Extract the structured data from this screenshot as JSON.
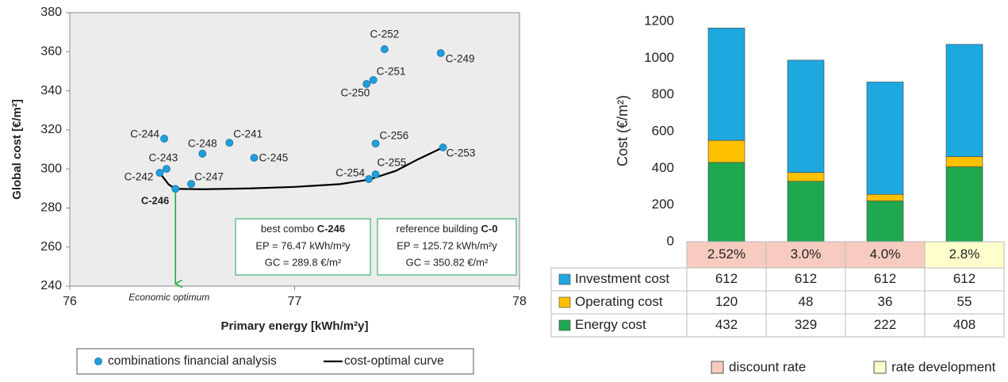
{
  "chart_data": [
    {
      "type": "scatter",
      "xlabel": "Primary energy [kWh/m²y]",
      "ylabel": "Global cost [€/m²]",
      "xlim": [
        76,
        78
      ],
      "xticks": [
        76,
        77,
        78
      ],
      "ylim": [
        240,
        380
      ],
      "yticks": [
        240,
        260,
        280,
        300,
        320,
        340,
        360,
        380
      ],
      "series": [
        {
          "name": "combinations financial analysis",
          "color": "#1ea0dc",
          "labels": [
            "C-252",
            "C-249",
            "C-251",
            "C-250",
            "C-244",
            "C-241",
            "C-248",
            "C-245",
            "C-256",
            "C-253",
            "C-243",
            "C-242",
            "C-247",
            "C-246",
            "C-255",
            "C-254"
          ],
          "x": [
            77.4,
            77.65,
            77.35,
            77.32,
            76.42,
            76.71,
            76.59,
            76.82,
            77.36,
            77.66,
            76.43,
            76.4,
            76.54,
            76.47,
            77.36,
            77.33
          ],
          "values": [
            361.3,
            359.3,
            345.5,
            343.5,
            315.5,
            313.4,
            307.8,
            305.7,
            313.0,
            311.0,
            300.0,
            298.0,
            292.3,
            289.8,
            297.2,
            294.8
          ]
        },
        {
          "name": "cost-optimal curve",
          "color": "#000000",
          "x": [
            76.4,
            76.44,
            76.47,
            76.6,
            76.8,
            77.0,
            77.2,
            77.33,
            77.45,
            77.55,
            77.66
          ],
          "values": [
            298,
            292,
            289.8,
            289.6,
            290,
            290.8,
            292.2,
            294.5,
            299,
            305,
            311
          ]
        }
      ],
      "best_box": {
        "title": "best combo",
        "title_bold": "C-246",
        "lines": [
          "EP = 76.47 kWh/m²y",
          "GC = 289.8 €/m²"
        ]
      },
      "ref_box": {
        "title": "reference building",
        "title_bold": "C-0",
        "lines": [
          "EP = 125.72 kWh/m²y",
          "GC = 350.82 €/m²"
        ]
      },
      "optimum_label": "Economic optimum"
    },
    {
      "type": "bar",
      "stacked": true,
      "ylabel": "Cost (€/m²)",
      "categories": [
        "2.52%",
        "3.0%",
        "4.0%",
        "2.8%"
      ],
      "category_groups": [
        0,
        0,
        0,
        1
      ],
      "group_legend": [
        {
          "name": "discount rate",
          "color": "#f8cbc0"
        },
        {
          "name": "rate development",
          "color": "#ffffcc"
        }
      ],
      "ylim": [
        0,
        1200
      ],
      "yticks": [
        0,
        200,
        400,
        600,
        800,
        1000,
        1200
      ],
      "series": [
        {
          "name": "Investment cost",
          "color": "#1ea8e0",
          "values": [
            612,
            612,
            612,
            612
          ]
        },
        {
          "name": "Operating cost",
          "color": "#ffc000",
          "values": [
            120,
            48,
            36,
            55
          ]
        },
        {
          "name": "Energy cost",
          "color": "#1fa84f",
          "values": [
            432,
            329,
            222,
            408
          ]
        }
      ]
    }
  ]
}
